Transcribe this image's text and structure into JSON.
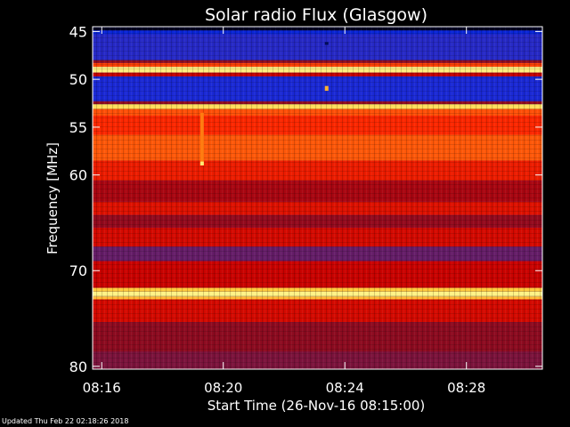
{
  "chart_data": {
    "type": "heatmap",
    "title": "Solar radio Flux (Glasgow)",
    "ylabel": "Frequency [MHz]",
    "xlabel": "Start Time (26-Nov-16 08:15:00)",
    "x_unit": "minutes after 08:15:00",
    "xlim": [
      0.7,
      15.5
    ],
    "ylim": [
      44.5,
      80.3
    ],
    "y_inverted": true,
    "x_ticks": [
      {
        "value": 1,
        "label": "08:16"
      },
      {
        "value": 5,
        "label": "08:20"
      },
      {
        "value": 9,
        "label": "08:24"
      },
      {
        "value": 13,
        "label": "08:28"
      }
    ],
    "y_ticks": [
      {
        "value": 45,
        "label": "45"
      },
      {
        "value": 50,
        "label": "50"
      },
      {
        "value": 55,
        "label": "55"
      },
      {
        "value": 60,
        "label": "60"
      },
      {
        "value": 70,
        "label": "70"
      },
      {
        "value": 80,
        "label": "80"
      }
    ],
    "grid": false,
    "colormap": [
      "#000022",
      "#001a9a",
      "#0a28e8",
      "#4a2a9a",
      "#8a0c22",
      "#c80000",
      "#ff2a00",
      "#ff7a10",
      "#ffd040",
      "#ffffa0"
    ],
    "bands": [
      {
        "from": 44.5,
        "to": 44.9,
        "level": 0.0
      },
      {
        "from": 44.9,
        "to": 45.3,
        "level": 0.2
      },
      {
        "from": 45.3,
        "to": 48.0,
        "level": 0.27
      },
      {
        "from": 48.0,
        "to": 48.3,
        "level": 0.45
      },
      {
        "from": 48.3,
        "to": 48.7,
        "level": 0.7
      },
      {
        "from": 48.7,
        "to": 49.3,
        "level": 0.96
      },
      {
        "from": 49.3,
        "to": 49.7,
        "level": 0.55
      },
      {
        "from": 49.7,
        "to": 52.3,
        "level": 0.25
      },
      {
        "from": 52.3,
        "to": 52.6,
        "level": 0.45
      },
      {
        "from": 52.6,
        "to": 53.1,
        "level": 0.92
      },
      {
        "from": 53.1,
        "to": 53.8,
        "level": 0.72
      },
      {
        "from": 53.8,
        "to": 55.8,
        "level": 0.66
      },
      {
        "from": 55.8,
        "to": 58.5,
        "level": 0.73
      },
      {
        "from": 58.5,
        "to": 60.6,
        "level": 0.63
      },
      {
        "from": 60.6,
        "to": 62.8,
        "level": 0.5
      },
      {
        "from": 62.8,
        "to": 64.2,
        "level": 0.6
      },
      {
        "from": 64.2,
        "to": 65.5,
        "level": 0.46
      },
      {
        "from": 65.5,
        "to": 67.5,
        "level": 0.58
      },
      {
        "from": 67.5,
        "to": 69.0,
        "level": 0.38
      },
      {
        "from": 69.0,
        "to": 71.8,
        "level": 0.56
      },
      {
        "from": 71.8,
        "to": 72.2,
        "level": 0.88
      },
      {
        "from": 72.2,
        "to": 72.7,
        "level": 0.97
      },
      {
        "from": 72.7,
        "to": 73.0,
        "level": 0.86
      },
      {
        "from": 73.0,
        "to": 75.4,
        "level": 0.58
      },
      {
        "from": 75.4,
        "to": 78.5,
        "level": 0.45
      },
      {
        "from": 78.5,
        "to": 80.3,
        "level": 0.42
      }
    ],
    "annotations": [
      {
        "x": 4.3,
        "from": 53.5,
        "to": 59.0,
        "level": 0.78
      },
      {
        "x": 4.3,
        "from": 58.6,
        "to": 59.0,
        "level": 0.95
      },
      {
        "x": 8.4,
        "from": 50.7,
        "to": 51.2,
        "level": 0.85
      },
      {
        "x": 8.4,
        "from": 46.1,
        "to": 46.4,
        "level": 0.05
      }
    ]
  },
  "footer": {
    "updated": "Updated Thu Feb 22 02:18:26 2018"
  }
}
